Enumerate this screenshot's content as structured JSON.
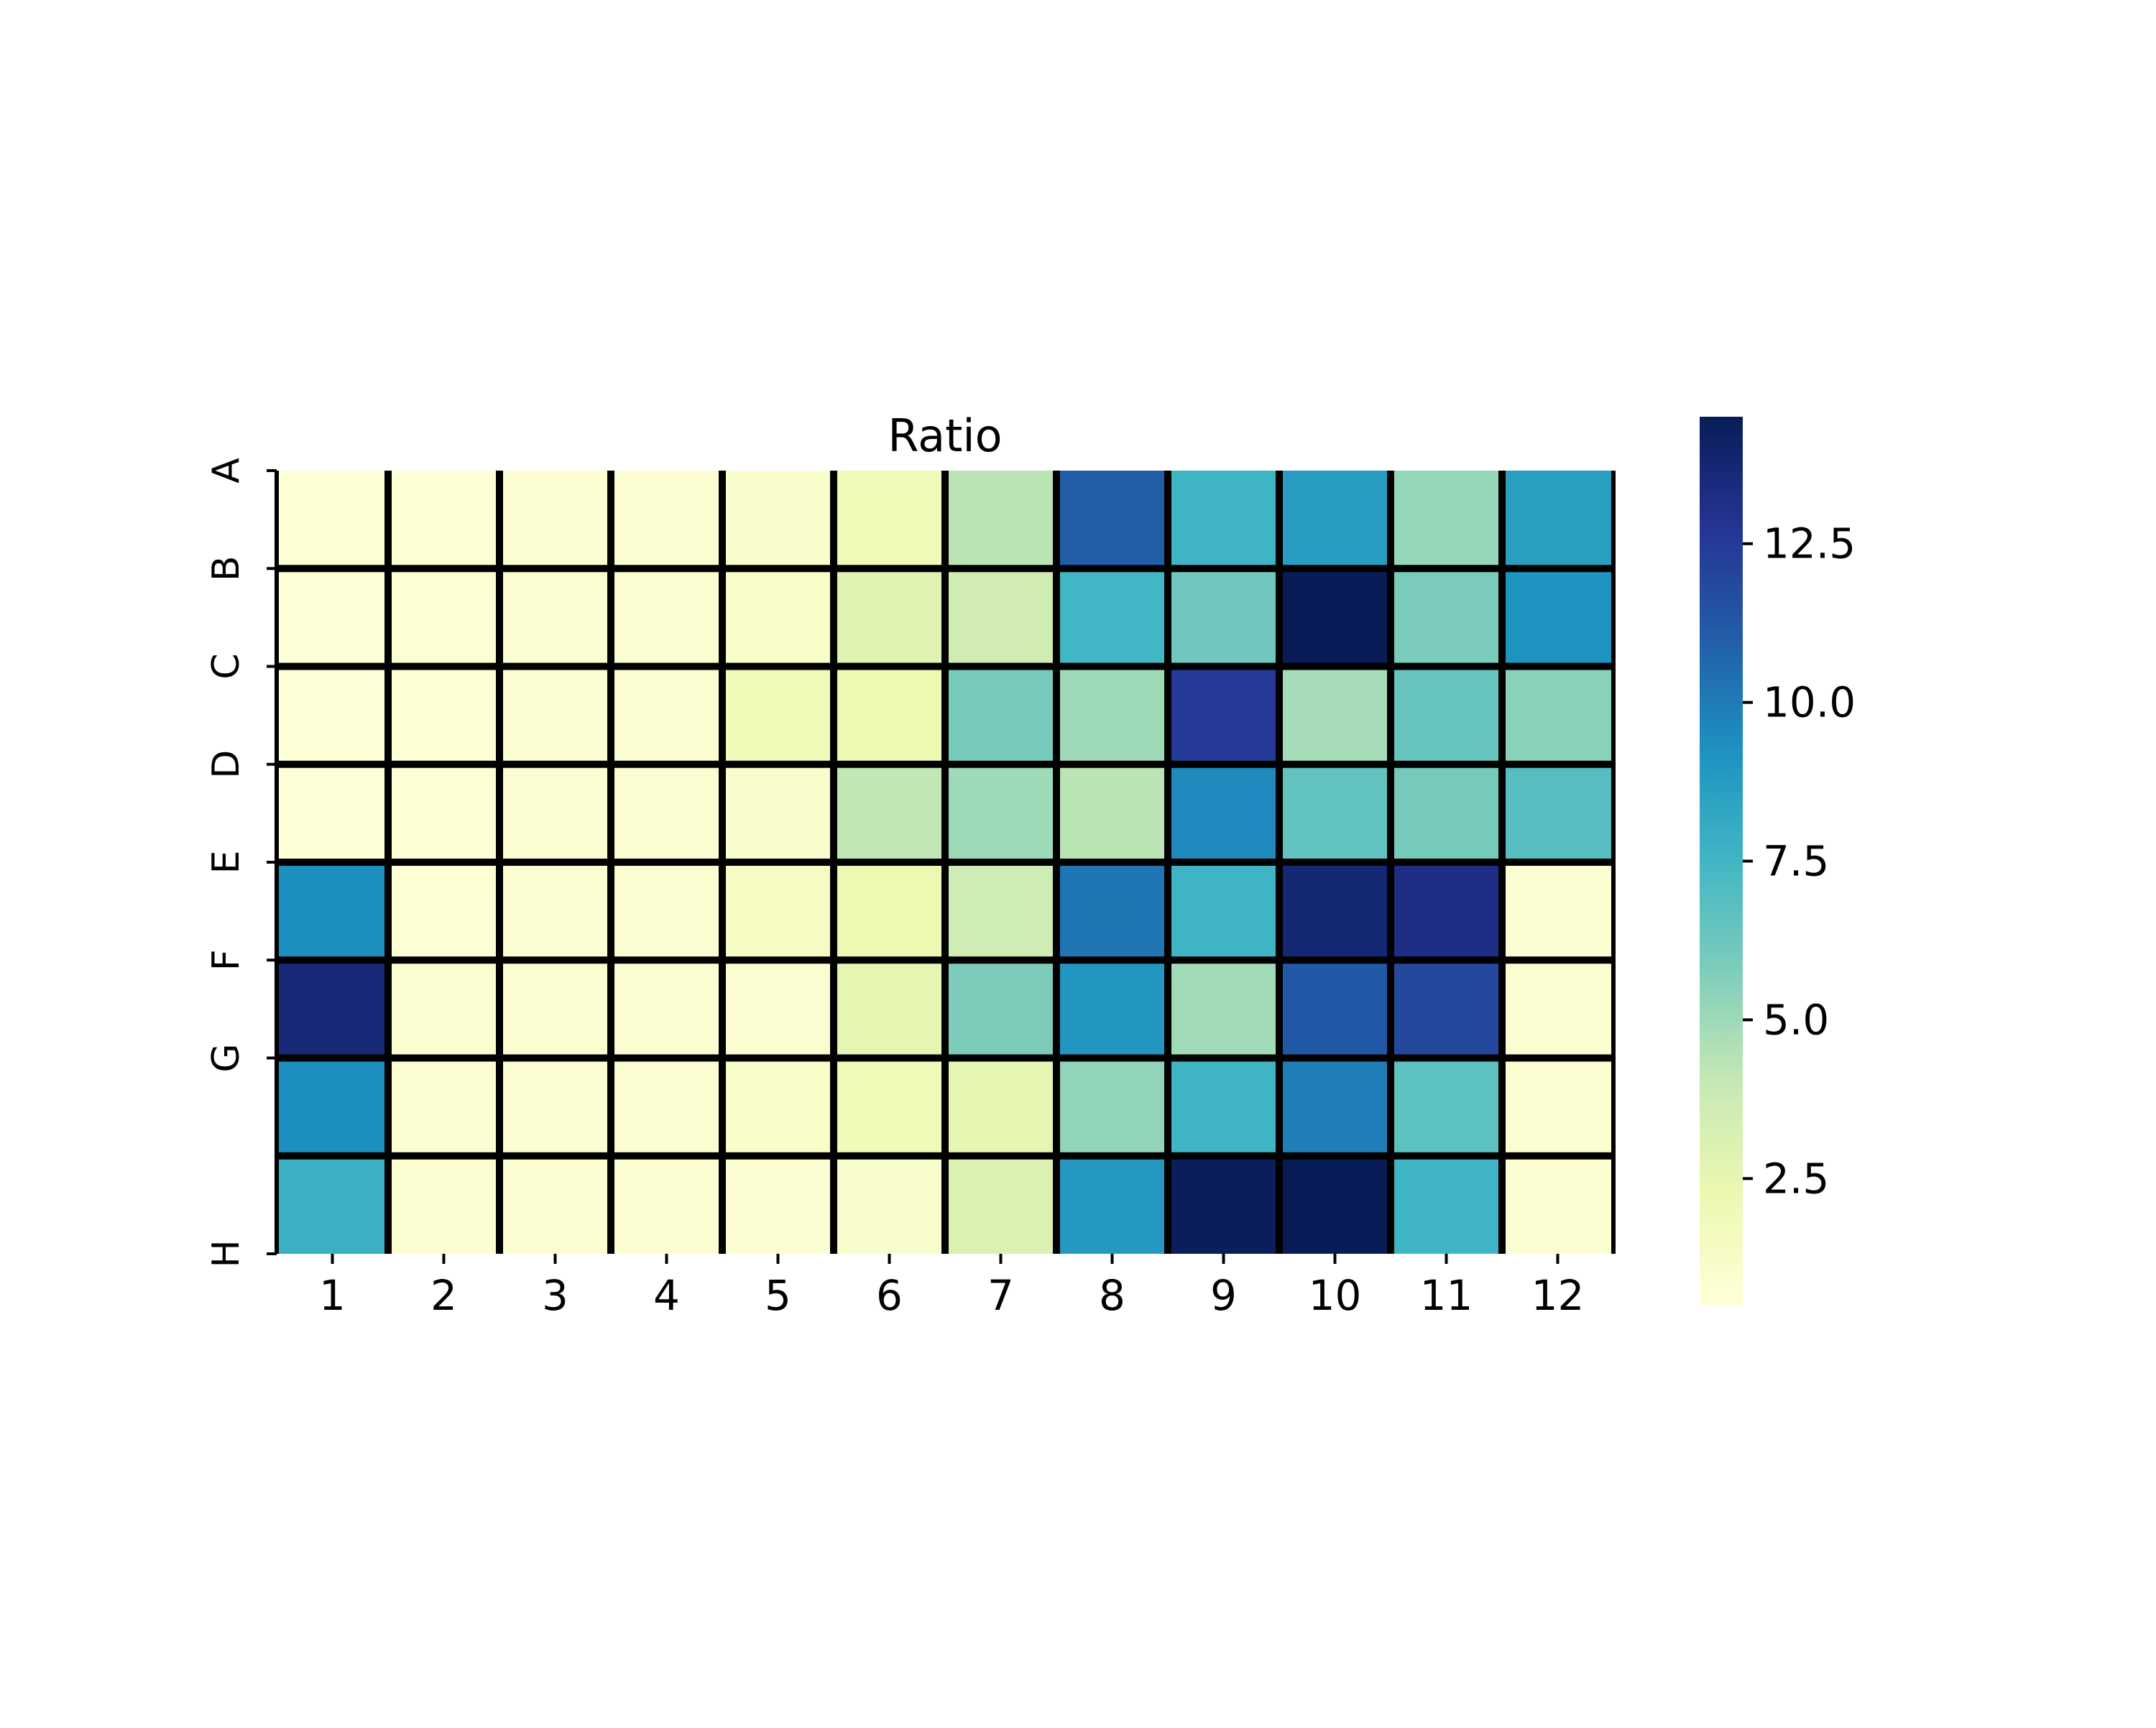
{
  "chart_data": {
    "type": "heatmap",
    "title": "Ratio",
    "rows": [
      "A",
      "B",
      "C",
      "D",
      "E",
      "F",
      "G",
      "H"
    ],
    "columns": [
      "1",
      "2",
      "3",
      "4",
      "5",
      "6",
      "7",
      "8",
      "9",
      "10",
      "11",
      "12"
    ],
    "values": [
      [
        0.7,
        0.7,
        0.8,
        0.8,
        1.1,
        2.0,
        4.3,
        11.0,
        7.6,
        8.7,
        5.2,
        8.6
      ],
      [
        0.6,
        0.7,
        0.9,
        0.9,
        1.2,
        2.9,
        3.6,
        7.5,
        6.2,
        14.5,
        5.9,
        9.1
      ],
      [
        0.6,
        0.7,
        0.9,
        0.9,
        2.0,
        2.2,
        6.0,
        5.0,
        12.5,
        4.8,
        6.4,
        5.5
      ],
      [
        0.6,
        0.7,
        0.9,
        0.9,
        1.1,
        4.1,
        5.0,
        4.3,
        9.5,
        6.6,
        6.0,
        6.9
      ],
      [
        9.3,
        0.7,
        0.9,
        0.9,
        1.5,
        2.2,
        3.7,
        10.2,
        7.6,
        13.7,
        13.2,
        0.8
      ],
      [
        13.6,
        0.8,
        0.8,
        0.9,
        0.8,
        2.6,
        5.8,
        9.0,
        4.9,
        11.2,
        11.9,
        0.9
      ],
      [
        9.3,
        0.8,
        0.9,
        0.9,
        1.2,
        1.9,
        2.6,
        5.3,
        7.6,
        9.9,
        6.7,
        0.9
      ],
      [
        7.8,
        0.8,
        0.9,
        0.8,
        0.9,
        1.1,
        3.1,
        8.9,
        14.4,
        14.5,
        7.6,
        0.8
      ]
    ],
    "colorbar": {
      "min": 0.5,
      "max": 14.5,
      "ticks": [
        2.5,
        5.0,
        7.5,
        10.0,
        12.5
      ],
      "tick_labels": [
        "2.5",
        "5.0",
        "7.5",
        "10.0",
        "12.5"
      ],
      "colormap": "YlGnBu"
    },
    "cell_border_color": "#000000",
    "grid": true
  }
}
